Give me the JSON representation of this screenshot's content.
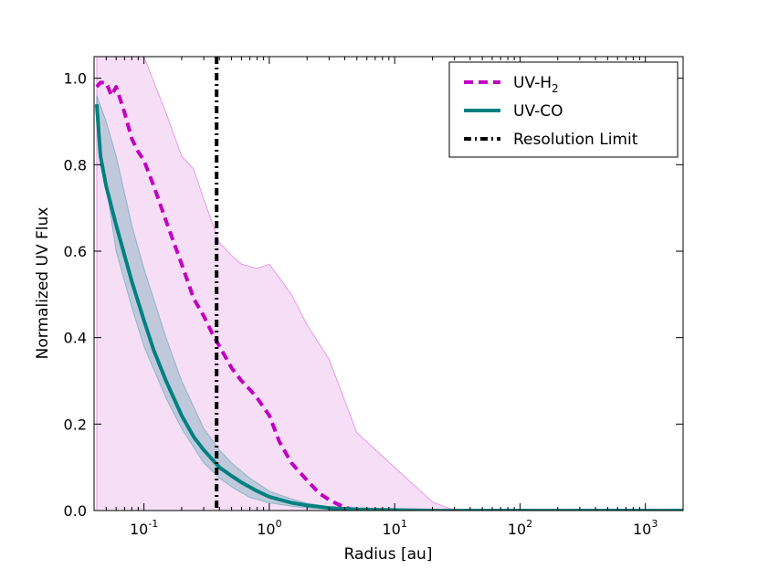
{
  "chart_data": {
    "type": "line",
    "title": "",
    "xlabel": "Radius [au]",
    "ylabel": "Normalized UV Flux",
    "xscale": "log",
    "xlim": [
      0.04,
      2000
    ],
    "ylim": [
      0.0,
      1.05
    ],
    "x_ticks": [
      {
        "value": 0.1,
        "base": "10",
        "exp": "-1"
      },
      {
        "value": 1,
        "base": "10",
        "exp": "0"
      },
      {
        "value": 10,
        "base": "10",
        "exp": "1"
      },
      {
        "value": 100,
        "base": "10",
        "exp": "2"
      },
      {
        "value": 1000,
        "base": "10",
        "exp": "3"
      }
    ],
    "y_ticks": [
      {
        "value": 0.0,
        "label": "0.0"
      },
      {
        "value": 0.2,
        "label": "0.2"
      },
      {
        "value": 0.4,
        "label": "0.4"
      },
      {
        "value": 0.6,
        "label": "0.6"
      },
      {
        "value": 0.8,
        "label": "0.8"
      },
      {
        "value": 1.0,
        "label": "1.0"
      }
    ],
    "legend_position": "top-right",
    "series": [
      {
        "name": "UV-H2",
        "legend_label": "UV-H",
        "legend_subscript": "2",
        "style": "dashed",
        "color": "#c000c0",
        "x": [
          0.042,
          0.045,
          0.05,
          0.055,
          0.06,
          0.065,
          0.07,
          0.08,
          0.09,
          0.1,
          0.12,
          0.15,
          0.2,
          0.25,
          0.3,
          0.35,
          0.4,
          0.5,
          0.6,
          0.7,
          0.8,
          1.0,
          1.2,
          1.5,
          2.0,
          2.5,
          3.0,
          3.5,
          4.0,
          4.5
        ],
        "y": [
          0.98,
          0.99,
          0.99,
          0.96,
          0.98,
          0.95,
          0.92,
          0.86,
          0.83,
          0.81,
          0.75,
          0.67,
          0.57,
          0.49,
          0.45,
          0.41,
          0.38,
          0.33,
          0.3,
          0.28,
          0.26,
          0.22,
          0.16,
          0.11,
          0.07,
          0.04,
          0.025,
          0.015,
          0.008,
          0.003
        ]
      },
      {
        "name": "UV-CO",
        "legend_label": "UV-CO",
        "style": "solid",
        "color": "#008080",
        "x": [
          0.042,
          0.045,
          0.05,
          0.06,
          0.07,
          0.08,
          0.1,
          0.12,
          0.15,
          0.2,
          0.25,
          0.3,
          0.4,
          0.5,
          0.6,
          0.8,
          1.0,
          1.5,
          2.0,
          3.0,
          5.0,
          10,
          20,
          50,
          100,
          1000,
          2000
        ],
        "y": [
          0.94,
          0.82,
          0.75,
          0.66,
          0.59,
          0.53,
          0.44,
          0.37,
          0.3,
          0.22,
          0.17,
          0.14,
          0.1,
          0.08,
          0.065,
          0.045,
          0.032,
          0.018,
          0.012,
          0.006,
          0.003,
          0.001,
          0.0,
          0.0,
          0.0,
          0.0,
          0.0
        ]
      },
      {
        "name": "Resolution Limit",
        "legend_label": "Resolution Limit",
        "style": "dashdot-vertical",
        "color": "#000000",
        "x_value": 0.38
      }
    ],
    "bands": [
      {
        "for": "UV-H2",
        "color": "#c000c0",
        "x": [
          0.042,
          0.05,
          0.06,
          0.08,
          0.1,
          0.15,
          0.2,
          0.25,
          0.3,
          0.4,
          0.5,
          0.6,
          0.8,
          1.0,
          1.5,
          2.0,
          3.0,
          5.0,
          10,
          20,
          30
        ],
        "upper": [
          1.05,
          1.05,
          1.05,
          1.05,
          1.05,
          0.92,
          0.82,
          0.79,
          0.72,
          0.62,
          0.59,
          0.57,
          0.56,
          0.57,
          0.5,
          0.43,
          0.35,
          0.18,
          0.1,
          0.02,
          0.0
        ],
        "lower": [
          0.0,
          0.0,
          0.0,
          0.0,
          0.0,
          0.0,
          0.0,
          0.0,
          0.0,
          0.0,
          0.0,
          0.0,
          0.0,
          0.0,
          0.0,
          0.0,
          0.0,
          0.0,
          0.0,
          0.0,
          0.0
        ]
      },
      {
        "for": "UV-CO",
        "color": "#008080",
        "x": [
          0.042,
          0.05,
          0.06,
          0.08,
          0.1,
          0.15,
          0.2,
          0.3,
          0.4,
          0.5,
          0.7,
          1.0,
          1.5,
          2.0,
          3.0,
          5.0,
          10,
          20
        ],
        "upper": [
          0.96,
          0.9,
          0.82,
          0.66,
          0.56,
          0.4,
          0.3,
          0.19,
          0.14,
          0.11,
          0.075,
          0.045,
          0.027,
          0.017,
          0.009,
          0.004,
          0.001,
          0.0
        ],
        "lower": [
          0.9,
          0.75,
          0.6,
          0.47,
          0.38,
          0.26,
          0.19,
          0.11,
          0.075,
          0.055,
          0.03,
          0.018,
          0.01,
          0.006,
          0.003,
          0.001,
          0.0,
          0.0
        ]
      }
    ]
  }
}
